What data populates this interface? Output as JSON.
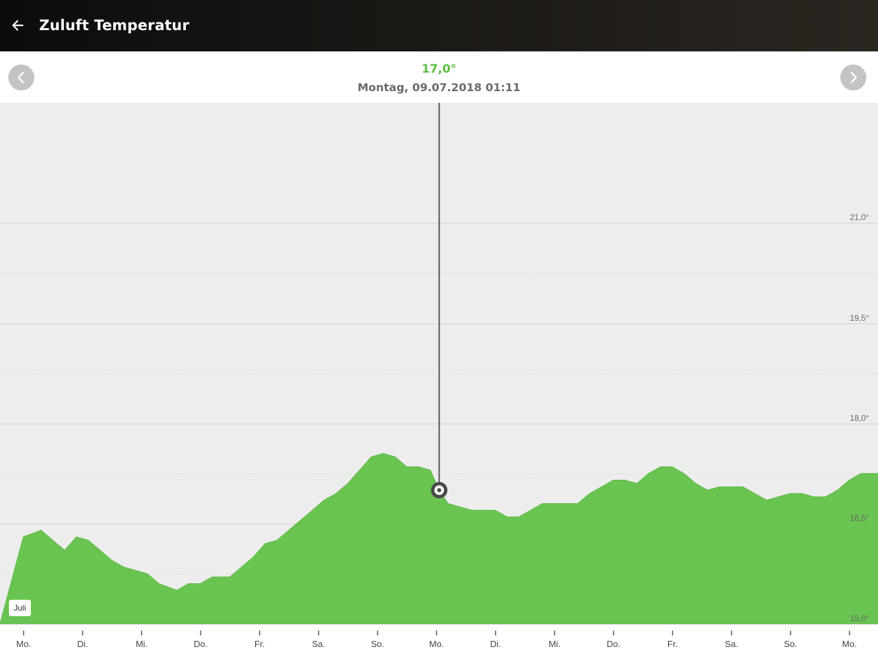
{
  "app_bar": {
    "title": "Zuluft Temperatur",
    "back_icon": "arrow-left-icon"
  },
  "header": {
    "value": "17,0°",
    "datetime": "Montag, 09.07.2018 01:11",
    "prev_icon": "chevron-left-icon",
    "next_icon": "chevron-right-icon"
  },
  "colors": {
    "accent": "#5cbb3f",
    "area_fill": "#6ac451",
    "chart_bg": "#ededed",
    "cursor_line": "#555555"
  },
  "chart_data": {
    "type": "area",
    "month_label": "Juli",
    "x_ticks": [
      "Mo.",
      "Di.",
      "Mi.",
      "Do.",
      "Fr.",
      "Sa.",
      "So.",
      "Mo.",
      "Di.",
      "Mi.",
      "Do.",
      "Fr.",
      "Sa.",
      "So.",
      "Mo."
    ],
    "y_ticks": [
      {
        "value": 15.0,
        "label": "15,0°"
      },
      {
        "value": 16.5,
        "label": "16,5°"
      },
      {
        "value": 18.0,
        "label": "18,0°"
      },
      {
        "value": 19.5,
        "label": "19,5°"
      },
      {
        "value": 21.0,
        "label": "21,0°"
      }
    ],
    "ylim": [
      15.0,
      22.8
    ],
    "xlim": [
      0,
      14.4
    ],
    "grid": true,
    "cursor": {
      "day": 7.05,
      "value": 17.0
    },
    "series": [
      {
        "points": [
          [
            0.0,
            16.3
          ],
          [
            0.3,
            16.4
          ],
          [
            0.5,
            16.25
          ],
          [
            0.7,
            16.1
          ],
          [
            0.9,
            16.3
          ],
          [
            1.1,
            16.25
          ],
          [
            1.3,
            16.1
          ],
          [
            1.5,
            15.95
          ],
          [
            1.7,
            15.85
          ],
          [
            1.9,
            15.8
          ],
          [
            2.1,
            15.75
          ],
          [
            2.3,
            15.6
          ],
          [
            2.6,
            15.5
          ],
          [
            2.8,
            15.6
          ],
          [
            3.0,
            15.6
          ],
          [
            3.2,
            15.7
          ],
          [
            3.5,
            15.7
          ],
          [
            3.7,
            15.85
          ],
          [
            3.9,
            16.0
          ],
          [
            4.1,
            16.2
          ],
          [
            4.3,
            16.25
          ],
          [
            4.5,
            16.4
          ],
          [
            4.7,
            16.55
          ],
          [
            4.9,
            16.7
          ],
          [
            5.1,
            16.85
          ],
          [
            5.3,
            16.95
          ],
          [
            5.5,
            17.1
          ],
          [
            5.7,
            17.3
          ],
          [
            5.9,
            17.5
          ],
          [
            6.1,
            17.55
          ],
          [
            6.3,
            17.5
          ],
          [
            6.5,
            17.35
          ],
          [
            6.7,
            17.35
          ],
          [
            6.9,
            17.3
          ],
          [
            7.05,
            17.0
          ],
          [
            7.2,
            16.8
          ],
          [
            7.4,
            16.75
          ],
          [
            7.6,
            16.7
          ],
          [
            7.8,
            16.7
          ],
          [
            8.0,
            16.7
          ],
          [
            8.2,
            16.6
          ],
          [
            8.4,
            16.6
          ],
          [
            8.6,
            16.7
          ],
          [
            8.8,
            16.8
          ],
          [
            9.0,
            16.8
          ],
          [
            9.2,
            16.8
          ],
          [
            9.4,
            16.8
          ],
          [
            9.6,
            16.95
          ],
          [
            9.8,
            17.05
          ],
          [
            10.0,
            17.15
          ],
          [
            10.2,
            17.15
          ],
          [
            10.4,
            17.1
          ],
          [
            10.6,
            17.25
          ],
          [
            10.8,
            17.35
          ],
          [
            11.0,
            17.35
          ],
          [
            11.2,
            17.25
          ],
          [
            11.4,
            17.1
          ],
          [
            11.6,
            17.0
          ],
          [
            11.8,
            17.05
          ],
          [
            12.0,
            17.05
          ],
          [
            12.2,
            17.05
          ],
          [
            12.4,
            16.95
          ],
          [
            12.6,
            16.85
          ],
          [
            12.8,
            16.9
          ],
          [
            13.0,
            16.95
          ],
          [
            13.2,
            16.95
          ],
          [
            13.4,
            16.9
          ],
          [
            13.6,
            16.9
          ],
          [
            13.8,
            17.0
          ],
          [
            14.0,
            17.15
          ],
          [
            14.2,
            17.25
          ],
          [
            14.4,
            17.25
          ]
        ]
      }
    ]
  }
}
